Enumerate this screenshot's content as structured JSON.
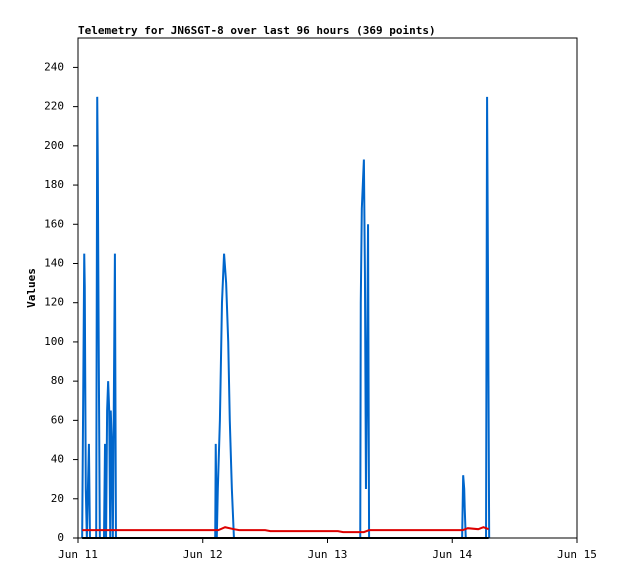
{
  "chart_data": {
    "type": "line",
    "title": "Telemetry for JN6SGT-8 over last 96 hours (369 points)",
    "y_label": "Values",
    "xlim": [
      0,
      96
    ],
    "xticks": [
      {
        "value": 0,
        "label": "Jun 11"
      },
      {
        "value": 24,
        "label": "Jun 12"
      },
      {
        "value": 48,
        "label": "Jun 13"
      },
      {
        "value": 72,
        "label": "Jun 14"
      },
      {
        "value": 96,
        "label": "Jun 15"
      }
    ],
    "ylim": [
      0,
      255
    ],
    "yticks": [
      0,
      20,
      40,
      60,
      80,
      100,
      120,
      140,
      160,
      180,
      200,
      220,
      240
    ],
    "series": [
      {
        "color": "#0066cc",
        "x": [
          0.8,
          1.0,
          1.2,
          1.3,
          1.5,
          1.7,
          2.1,
          2.3,
          3.5,
          3.7,
          3.8,
          4.0,
          4.2,
          5.0,
          5.2,
          5.4,
          5.6,
          5.8,
          6.0,
          6.2,
          6.3,
          6.5,
          6.7,
          6.9,
          7.1,
          7.3,
          26.4,
          26.5,
          26.7,
          26.9,
          27.3,
          27.7,
          28.1,
          28.5,
          28.9,
          29.2,
          29.6,
          30.0,
          54.3,
          54.4,
          54.6,
          55.0,
          55.2,
          55.4,
          55.6,
          55.8,
          56.0,
          73.9,
          74.1,
          74.3,
          74.4,
          74.6,
          78.5,
          78.7,
          78.9,
          79.1
        ],
        "values": [
          0,
          72,
          145,
          128,
          25,
          0,
          48,
          0,
          0,
          225,
          193,
          90,
          0,
          0,
          48,
          0,
          65,
          80,
          65,
          0,
          65,
          48,
          0,
          72,
          145,
          0,
          0,
          48,
          0,
          25,
          60,
          120,
          145,
          130,
          100,
          60,
          25,
          0,
          0,
          120,
          168,
          193,
          135,
          25,
          80,
          160,
          0,
          0,
          32,
          25,
          15,
          0,
          0,
          225,
          120,
          0
        ]
      },
      {
        "color": "#dd0000",
        "x": [
          0.8,
          20,
          27,
          28.3,
          30,
          31,
          36,
          37,
          50,
          51,
          55,
          56,
          74,
          75,
          77,
          78,
          79
        ],
        "values": [
          4,
          4,
          4,
          5.5,
          4.5,
          4,
          4,
          3.5,
          3.5,
          3,
          3,
          4,
          4,
          5,
          4.5,
          5.5,
          4.5
        ]
      },
      {
        "color": "#000000",
        "x": [
          0.8,
          79
        ],
        "values": [
          0,
          0
        ]
      }
    ]
  }
}
